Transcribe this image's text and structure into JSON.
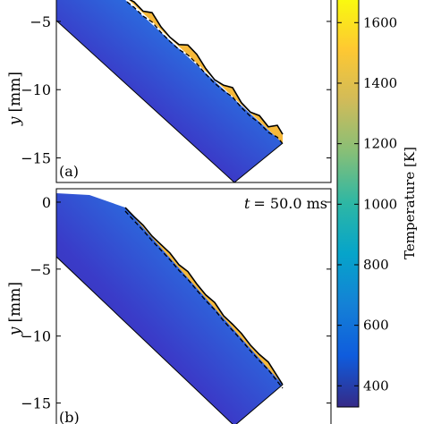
{
  "chart_data": [
    {
      "type": "heatmap",
      "panel_label": "(a)",
      "time_label": "",
      "ylabel": "y [mm]",
      "ylabel_var": "y",
      "ylabel_unit": "[mm]",
      "yticks": [
        -5,
        -10,
        -15
      ],
      "ylim": [
        -16.8,
        -3.3
      ],
      "xlabel": "",
      "surface_x": [
        142,
        150,
        160,
        170,
        180,
        190,
        200,
        210,
        220,
        230,
        240,
        250,
        260,
        270,
        280,
        290,
        300,
        310,
        316
      ],
      "surface_y_offset_mm": [
        0.0,
        0.3,
        0.2,
        0.9,
        0.3,
        0.1,
        0.2,
        1.0,
        0.9,
        0.3,
        0.0,
        0.3,
        0.9,
        0.2,
        0.1,
        0.6,
        0.3,
        1.3,
        0.9
      ]
    },
    {
      "type": "heatmap",
      "panel_label": "(b)",
      "time_label": "t = 50.0 ms",
      "time_var": "t",
      "time_value": "= 50.0 ms",
      "ylabel": "y [mm]",
      "ylabel_var": "y",
      "ylabel_unit": "[mm]",
      "yticks": [
        0,
        -5,
        -10,
        -15
      ],
      "ylim": [
        -16.7,
        1.0
      ],
      "xlabel": "",
      "surface_x": [
        140,
        150,
        160,
        170,
        180,
        190,
        200,
        210,
        220,
        230,
        240,
        250,
        260,
        270,
        280,
        290,
        300,
        310,
        316
      ],
      "surface_y_offset_mm": [
        0.0,
        0.1,
        0.3,
        0.2,
        0.4,
        0.6,
        0.4,
        0.8,
        0.5,
        0.4,
        0.7,
        0.3,
        0.5,
        0.6,
        0.4,
        0.5,
        0.8,
        0.3,
        0.0
      ]
    }
  ],
  "colorbar": {
    "label": "Temperature [K]",
    "ticks": [
      400,
      600,
      800,
      1000,
      1200,
      1400,
      1600
    ],
    "range": [
      330,
      1660
    ],
    "colormap": "parula"
  }
}
